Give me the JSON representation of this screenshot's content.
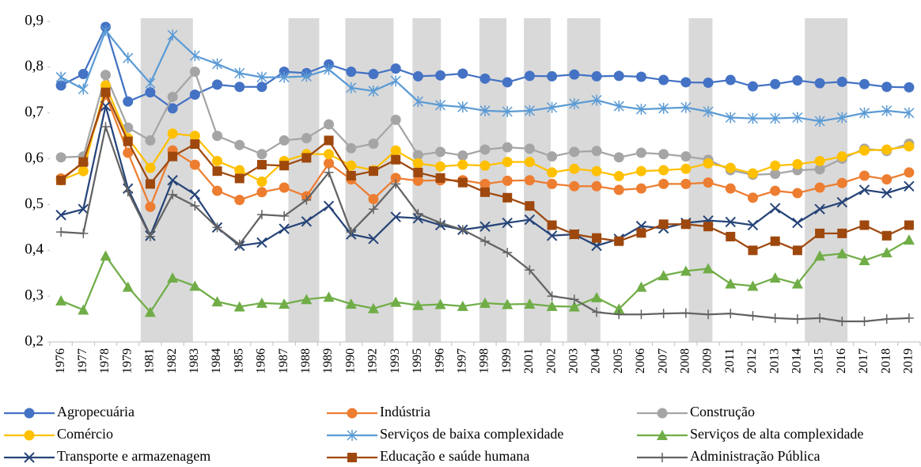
{
  "chart_data": {
    "type": "line",
    "categories": [
      "1976",
      "1977",
      "1978",
      "1979",
      "1981",
      "1982",
      "1983",
      "1984",
      "1985",
      "1986",
      "1987",
      "1988",
      "1989",
      "1990",
      "1992",
      "1993",
      "1995",
      "1996",
      "1997",
      "1998",
      "1999",
      "2001",
      "2002",
      "2003",
      "2004",
      "2005",
      "2006",
      "2007",
      "2008",
      "2009",
      "2011",
      "2012",
      "2013",
      "2014",
      "2015",
      "2016",
      "2017",
      "2018",
      "2019"
    ],
    "ylim": [
      0.2,
      0.9
    ],
    "yticks": [
      {
        "value": 0.2,
        "label": "0,2"
      },
      {
        "value": 0.3,
        "label": "0,3"
      },
      {
        "value": 0.4,
        "label": "0,4"
      },
      {
        "value": 0.5,
        "label": "0,5"
      },
      {
        "value": 0.6,
        "label": "0,6"
      },
      {
        "value": 0.7,
        "label": "0,7"
      },
      {
        "value": 0.8,
        "label": "0,8"
      },
      {
        "value": 0.9,
        "label": "0,9"
      }
    ],
    "series": [
      {
        "name": "Agropecuária",
        "color": "#4472c4",
        "marker": "circle",
        "values": [
          0.76,
          0.785,
          0.888,
          0.725,
          0.745,
          0.71,
          0.74,
          0.762,
          0.757,
          0.757,
          0.79,
          0.787,
          0.806,
          0.79,
          0.785,
          0.797,
          0.78,
          0.782,
          0.786,
          0.775,
          0.767,
          0.781,
          0.78,
          0.784,
          0.78,
          0.781,
          0.779,
          0.772,
          0.767,
          0.766,
          0.772,
          0.758,
          0.763,
          0.771,
          0.765,
          0.768,
          0.763,
          0.757,
          0.756
        ]
      },
      {
        "name": "Indústria",
        "color": "#ed7d31",
        "marker": "circle",
        "values": [
          0.557,
          0.59,
          0.74,
          0.613,
          0.495,
          0.618,
          0.587,
          0.53,
          0.51,
          0.527,
          0.537,
          0.518,
          0.59,
          0.555,
          0.512,
          0.558,
          0.552,
          0.553,
          0.553,
          0.545,
          0.552,
          0.553,
          0.545,
          0.54,
          0.54,
          0.532,
          0.535,
          0.545,
          0.545,
          0.548,
          0.535,
          0.515,
          0.53,
          0.525,
          0.537,
          0.547,
          0.563,
          0.555,
          0.57
        ]
      },
      {
        "name": "Construção",
        "color": "#a5a5a5",
        "marker": "circle",
        "values": [
          0.603,
          0.605,
          0.783,
          0.668,
          0.64,
          0.735,
          0.79,
          0.65,
          0.63,
          0.61,
          0.64,
          0.645,
          0.675,
          0.623,
          0.633,
          0.685,
          0.608,
          0.615,
          0.607,
          0.62,
          0.625,
          0.622,
          0.605,
          0.615,
          0.617,
          0.603,
          0.613,
          0.61,
          0.605,
          0.598,
          0.575,
          0.565,
          0.567,
          0.575,
          0.577,
          0.6,
          0.622,
          0.617,
          0.633
        ]
      },
      {
        "name": "Comércio",
        "color": "#ffc000",
        "marker": "circle",
        "values": [
          0.553,
          0.573,
          0.76,
          0.645,
          0.58,
          0.655,
          0.65,
          0.595,
          0.575,
          0.55,
          0.595,
          0.61,
          0.61,
          0.585,
          0.575,
          0.618,
          0.59,
          0.583,
          0.587,
          0.585,
          0.593,
          0.593,
          0.57,
          0.578,
          0.573,
          0.562,
          0.573,
          0.575,
          0.578,
          0.59,
          0.58,
          0.568,
          0.585,
          0.588,
          0.595,
          0.605,
          0.618,
          0.62,
          0.627
        ]
      },
      {
        "name": "Serviços de baixa complexidade",
        "color": "#5b9bd5",
        "marker": "star",
        "values": [
          0.778,
          0.752,
          0.88,
          0.82,
          0.765,
          0.87,
          0.825,
          0.807,
          0.787,
          0.778,
          0.778,
          0.78,
          0.795,
          0.755,
          0.748,
          0.77,
          0.725,
          0.717,
          0.713,
          0.705,
          0.703,
          0.705,
          0.712,
          0.72,
          0.728,
          0.715,
          0.708,
          0.71,
          0.712,
          0.703,
          0.69,
          0.688,
          0.688,
          0.69,
          0.682,
          0.69,
          0.7,
          0.705,
          0.7
        ]
      },
      {
        "name": "Serviços de alta complexidade",
        "color": "#70ad47",
        "marker": "triangle",
        "values": [
          0.29,
          0.27,
          0.388,
          0.32,
          0.265,
          0.34,
          0.322,
          0.288,
          0.277,
          0.285,
          0.283,
          0.293,
          0.298,
          0.283,
          0.273,
          0.287,
          0.28,
          0.282,
          0.278,
          0.285,
          0.282,
          0.283,
          0.278,
          0.277,
          0.297,
          0.272,
          0.32,
          0.345,
          0.355,
          0.36,
          0.327,
          0.322,
          0.34,
          0.327,
          0.388,
          0.393,
          0.378,
          0.395,
          0.423
        ]
      },
      {
        "name": "Transporte e armazenagem",
        "color": "#264478",
        "marker": "x",
        "values": [
          0.477,
          0.49,
          0.715,
          0.535,
          0.432,
          0.553,
          0.522,
          0.45,
          0.41,
          0.417,
          0.447,
          0.463,
          0.497,
          0.435,
          0.425,
          0.473,
          0.47,
          0.455,
          0.445,
          0.452,
          0.46,
          0.467,
          0.432,
          0.435,
          0.41,
          0.425,
          0.453,
          0.448,
          0.46,
          0.465,
          0.462,
          0.455,
          0.492,
          0.46,
          0.49,
          0.505,
          0.532,
          0.525,
          0.54
        ]
      },
      {
        "name": "Educação e saúde humana",
        "color": "#9e480e",
        "marker": "square",
        "values": [
          0.553,
          0.593,
          0.745,
          0.638,
          0.545,
          0.605,
          0.632,
          0.573,
          0.557,
          0.587,
          0.585,
          0.602,
          0.64,
          0.563,
          0.573,
          0.598,
          0.57,
          0.558,
          0.548,
          0.527,
          0.515,
          0.497,
          0.455,
          0.435,
          0.427,
          0.42,
          0.438,
          0.457,
          0.457,
          0.452,
          0.43,
          0.4,
          0.42,
          0.4,
          0.437,
          0.437,
          0.455,
          0.432,
          0.455
        ]
      },
      {
        "name": "Administração Pública",
        "color": "#636363",
        "marker": "plus",
        "values": [
          0.44,
          0.437,
          0.67,
          0.528,
          0.43,
          0.522,
          0.497,
          0.45,
          0.413,
          0.478,
          0.475,
          0.51,
          0.57,
          0.44,
          0.49,
          0.545,
          0.48,
          0.46,
          0.445,
          0.42,
          0.395,
          0.357,
          0.3,
          0.293,
          0.265,
          0.26,
          0.26,
          0.262,
          0.263,
          0.26,
          0.262,
          0.257,
          0.252,
          0.25,
          0.252,
          0.245,
          0.245,
          0.25,
          0.252
        ]
      }
    ]
  }
}
